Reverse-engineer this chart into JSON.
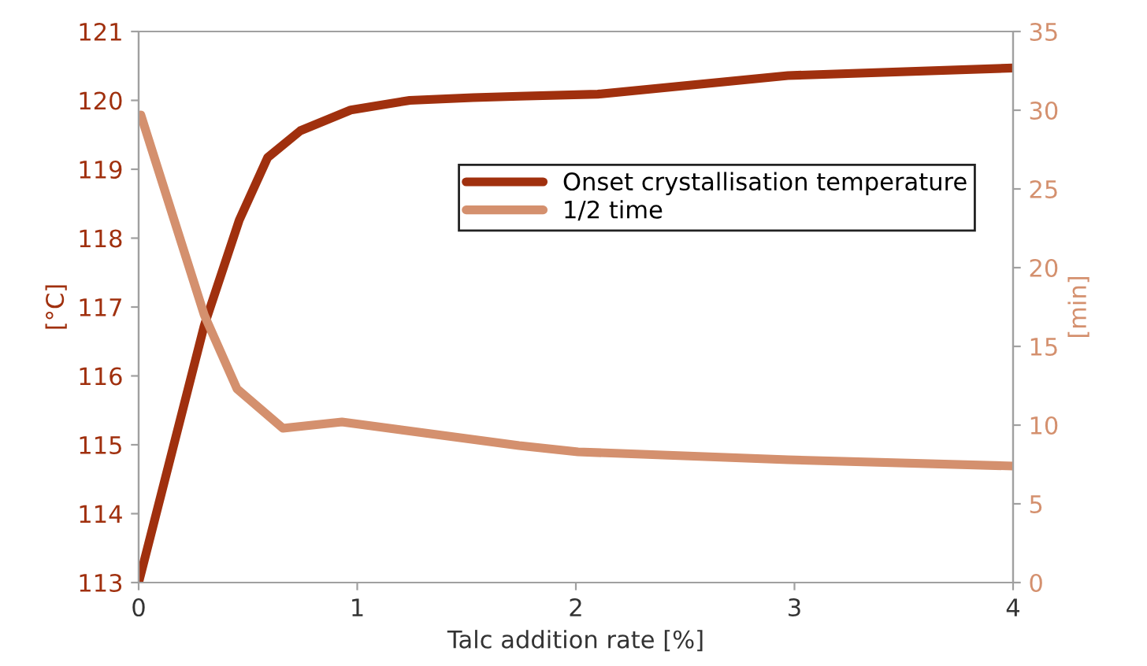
{
  "chart_data": {
    "type": "line",
    "xlabel": "Talc addition rate [%]",
    "ylabel": "[°C]",
    "y2label": "[min]",
    "xlim": [
      0,
      4
    ],
    "xticks": [
      0,
      1,
      2,
      3,
      4
    ],
    "ylim": [
      113,
      121
    ],
    "yticks": [
      113,
      114,
      115,
      116,
      117,
      118,
      119,
      120,
      121
    ],
    "y2lim": [
      0,
      35
    ],
    "y2ticks": [
      0,
      5,
      10,
      15,
      20,
      25,
      30,
      35
    ],
    "grid": false,
    "legend": "top right",
    "marker": "none",
    "line_style": "solid",
    "series": [
      {
        "name": "Onset crystallisation temperature",
        "color": "#a0300e",
        "x": [
          0,
          0.3,
          0.46,
          0.59,
          0.74,
          0.97,
          1.24,
          1.53,
          1.74,
          2.1,
          2.97,
          4
        ],
        "values": [
          113,
          116.73,
          118.26,
          119.17,
          119.56,
          119.86,
          120.0,
          120.04,
          120.06,
          120.09,
          120.36,
          120.47
        ]
      },
      {
        "name": "1/2 time",
        "color": "#d4906e",
        "axis": "y2",
        "x": [
          0.01,
          0.3,
          0.45,
          0.66,
          0.93,
          1.74,
          2.01,
          2.97,
          4
        ],
        "values": [
          29.7,
          17.0,
          12.3,
          9.8,
          10.2,
          8.7,
          8.3,
          7.8,
          7.4
        ]
      }
    ]
  }
}
